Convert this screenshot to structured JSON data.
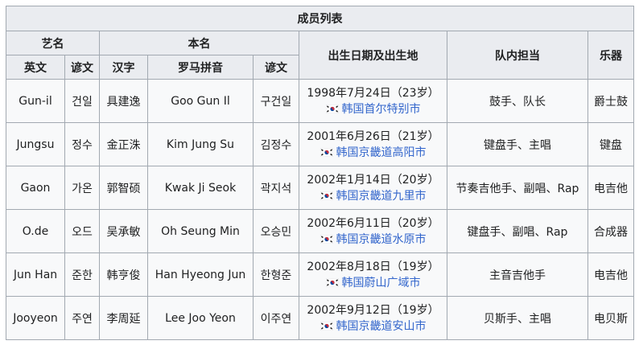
{
  "table": {
    "caption": "成员列表",
    "header": {
      "group_stage_name": "艺名",
      "group_real_name": "本名",
      "birth": "出生日期及出生地",
      "role": "队内担当",
      "instrument": "乐器",
      "stage_en": "英文",
      "stage_ko": "谚文",
      "real_hanja": "汉字",
      "real_roman": "罗马拼音",
      "real_ko": "谚文"
    },
    "rows": [
      {
        "stage_en": "Gun-il",
        "stage_ko": "건일",
        "real_hanja": "具建逸",
        "real_roman": "Goo Gun Il",
        "real_ko": "구건일",
        "birth_date": "1998年7月24日（23岁）",
        "birth_place": "韩国首尔特别市",
        "role": "鼓手、队长",
        "instrument": "爵士鼓"
      },
      {
        "stage_en": "Jungsu",
        "stage_ko": "정수",
        "real_hanja": "金正洙",
        "real_roman": "Kim Jung Su",
        "real_ko": "김정수",
        "birth_date": "2001年6月26日（21岁）",
        "birth_place": "韩国京畿道高阳市",
        "role": "键盘手、主唱",
        "instrument": "键盘"
      },
      {
        "stage_en": "Gaon",
        "stage_ko": "가온",
        "real_hanja": "郭智硕",
        "real_roman": "Kwak Ji Seok",
        "real_ko": "곽지석",
        "birth_date": "2002年1月14日（20岁）",
        "birth_place": "韩国京畿道九里市",
        "role": "节奏吉他手、副唱、Rap",
        "instrument": "电吉他"
      },
      {
        "stage_en": "O.de",
        "stage_ko": "오드",
        "real_hanja": "吴承敏",
        "real_roman": "Oh Seung Min",
        "real_ko": "오승민",
        "birth_date": "2002年6月11日（20岁）",
        "birth_place": "韩国京畿道水原市",
        "role": "键盘手、副唱、Rap",
        "instrument": "合成器"
      },
      {
        "stage_en": "Jun Han",
        "stage_ko": "준한",
        "real_hanja": "韩亨俊",
        "real_roman": "Han Hyeong Jun",
        "real_ko": "한형준",
        "birth_date": "2002年8月18日（19岁）",
        "birth_place": "韩国蔚山广域市",
        "role": "主音吉他手",
        "instrument": "电吉他"
      },
      {
        "stage_en": "Jooyeon",
        "stage_ko": "주연",
        "real_hanja": "李周延",
        "real_roman": "Lee Joo Yeon",
        "real_ko": "이주연",
        "birth_date": "2002年9月12日（19岁）",
        "birth_place": "韩国京畿道安山市",
        "role": "贝斯手、主唱",
        "instrument": "电贝斯"
      }
    ]
  },
  "icons": {
    "flag": "south-korea-flag-icon"
  },
  "colors": {
    "header_bg": "#eaecf0",
    "cell_bg": "#f8f9fa",
    "border": "#a2a9b1",
    "link": "#3366cc"
  }
}
